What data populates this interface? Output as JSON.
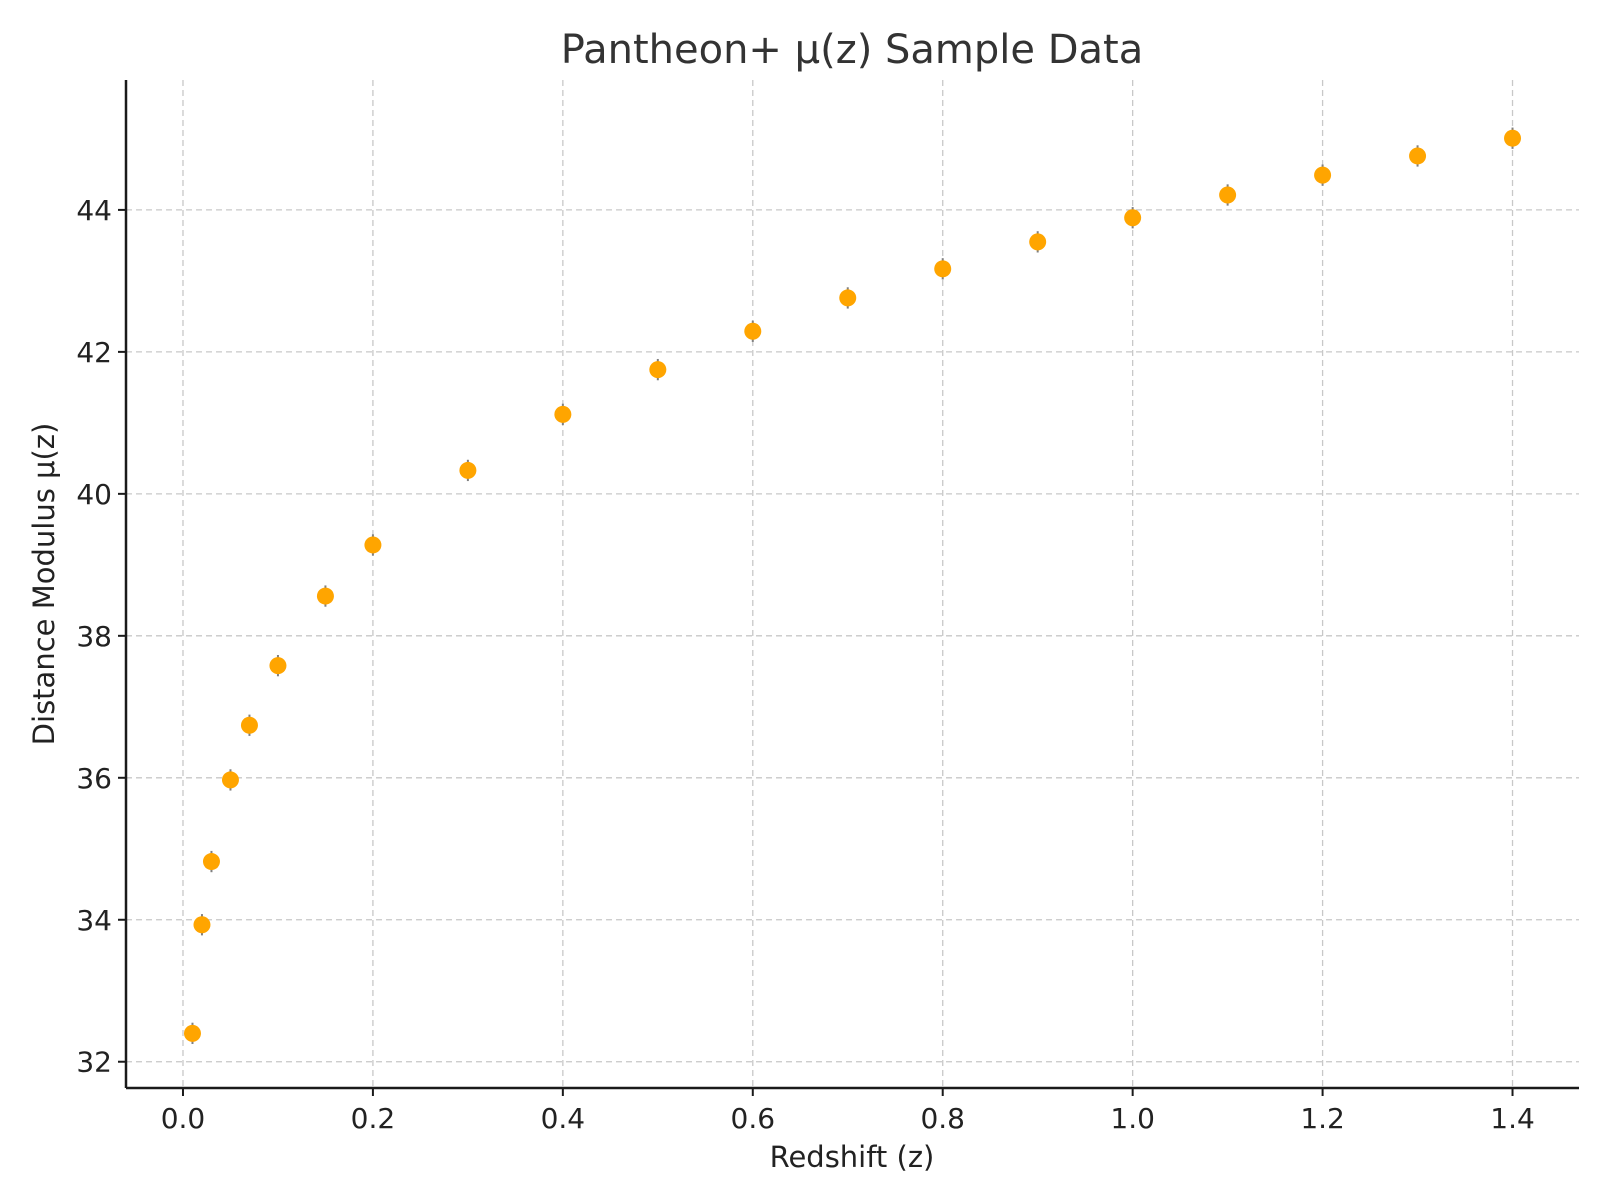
{
  "chart_data": {
    "type": "scatter",
    "title": "Pantheon+ μ(z) Sample Data",
    "xlabel": "Redshift (z)",
    "ylabel": "Distance Modulus μ(z)",
    "xlim": [
      -0.06,
      1.47
    ],
    "ylim": [
      31.63,
      45.83
    ],
    "x_ticks": [
      0.0,
      0.2,
      0.4,
      0.6,
      0.8,
      1.0,
      1.2,
      1.4
    ],
    "x_tick_labels": [
      "0.0",
      "0.2",
      "0.4",
      "0.6",
      "0.8",
      "1.0",
      "1.2",
      "1.4"
    ],
    "y_ticks": [
      32,
      34,
      36,
      38,
      40,
      42,
      44
    ],
    "y_tick_labels": [
      "32",
      "34",
      "36",
      "38",
      "40",
      "42",
      "44"
    ],
    "grid": true,
    "marker_color": "#FFA500",
    "error_bar_color": "#808080",
    "series": [
      {
        "x": [
          0.01,
          0.02,
          0.03,
          0.05,
          0.07,
          0.1,
          0.15,
          0.2,
          0.3,
          0.4,
          0.5,
          0.6,
          0.7,
          0.8,
          0.9,
          1.0,
          1.1,
          1.2,
          1.3,
          1.4
        ],
        "y": [
          32.4,
          33.93,
          34.82,
          35.97,
          36.74,
          37.58,
          38.56,
          39.28,
          40.33,
          41.12,
          41.75,
          42.29,
          42.76,
          43.17,
          43.55,
          43.89,
          44.21,
          44.49,
          44.76,
          45.01
        ],
        "y_err": [
          0.15,
          0.15,
          0.15,
          0.15,
          0.15,
          0.15,
          0.15,
          0.15,
          0.15,
          0.15,
          0.15,
          0.15,
          0.15,
          0.15,
          0.15,
          0.15,
          0.15,
          0.15,
          0.15,
          0.15
        ]
      }
    ]
  }
}
